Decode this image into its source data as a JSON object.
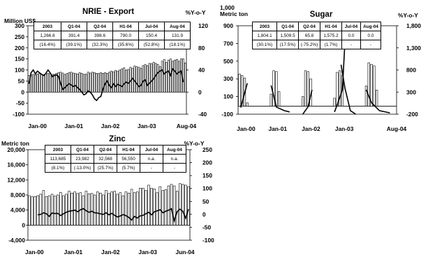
{
  "chart_data": [
    {
      "type": "bar",
      "title": "NRIE - Export",
      "ylabel": "Million US$",
      "y2label": "%Y-o-Y",
      "ylim": [
        -100,
        300
      ],
      "y2lim": [
        -40,
        120
      ],
      "yticks": [
        "300",
        "250",
        "200",
        "150",
        "100",
        "50",
        "0",
        "-50",
        "-100"
      ],
      "y2ticks": [
        "120",
        "80",
        "40",
        "0",
        "-40"
      ],
      "xticks": [
        "Jan-00",
        "Jan-01",
        "Jan-02",
        "Jan-03",
        "Aug-04"
      ],
      "table": {
        "headers": [
          "2003",
          "Q1-04",
          "Q2-04",
          "H1-04",
          "Jul-04",
          "Aug-04"
        ],
        "values": [
          "1,266.6",
          "391.4",
          "398.6",
          "790.0",
          "150.4",
          "131.9"
        ],
        "growth": [
          "(16.4%)",
          "(39.1%)",
          "(32.3%)",
          "(35.6%)",
          "(52.8%)",
          "(18.1%)"
        ]
      },
      "series": [
        {
          "name": "Value",
          "type": "bar",
          "values": [
            75,
            78,
            80,
            78,
            82,
            84,
            80,
            78,
            82,
            85,
            83,
            80,
            80,
            85,
            88,
            90,
            86,
            80,
            84,
            88,
            90,
            86,
            84,
            82,
            88,
            85,
            80,
            82,
            90,
            86,
            90,
            88,
            85,
            84,
            88,
            85,
            88,
            85,
            90,
            95,
            92,
            98,
            95,
            100,
            105,
            110,
            100,
            102,
            112,
            108,
            118,
            115,
            112,
            108,
            120,
            125,
            120,
            130,
            128,
            135,
            130,
            125,
            115,
            140,
            148,
            135,
            145,
            150,
            140,
            145,
            148,
            140,
            150,
            150,
            132
          ]
        },
        {
          "name": "%Y-o-Y",
          "type": "line",
          "values": [
            15,
            35,
            40,
            33,
            38,
            35,
            32,
            30,
            34,
            40,
            35,
            28,
            30,
            31,
            28,
            15,
            5,
            8,
            12,
            15,
            13,
            10,
            12,
            8,
            5,
            0,
            -5,
            -3,
            2,
            0,
            -5,
            -12,
            -15,
            -10,
            -8,
            5,
            15,
            20,
            12,
            8,
            15,
            10,
            14,
            12,
            10,
            15,
            18,
            16,
            20,
            25,
            20,
            15,
            10,
            12,
            20,
            22,
            12,
            16,
            20,
            24,
            30,
            35,
            38,
            40,
            33,
            36,
            38,
            30,
            42,
            38,
            33,
            36,
            38,
            18
          ]
        }
      ]
    },
    {
      "type": "bar",
      "title": "Sugar",
      "ylabel": "1,000 Metric ton",
      "y2label": "%Y-o-Y",
      "ylim": [
        -100,
        1000
      ],
      "y2lim": [
        -200,
        1800
      ],
      "yticks": [
        "900",
        "700",
        "500",
        "300",
        "100",
        "-100"
      ],
      "y2ticks": [
        "1,800",
        "1,300",
        "800",
        "300",
        "-200"
      ],
      "xticks": [
        "Jan-00",
        "Jan-01",
        "Jan-02",
        "Jan-03",
        "Aug-04"
      ],
      "table": {
        "headers": [
          "2003",
          "Q1-04",
          "Q2-04",
          "H1-04",
          "Jul-04",
          "Aug-04"
        ],
        "values": [
          "1,804.1",
          "1,509.5",
          "65.8",
          "1,575.2",
          "0.0",
          "0.0"
        ],
        "growth": [
          "(30.1%)",
          "(17.5%)",
          "(-75.2%)",
          "(1.7%)",
          "-",
          "-"
        ]
      },
      "series": [
        {
          "name": "Volume",
          "type": "bar",
          "values": [
            400,
            380,
            350,
            40,
            0,
            0,
            0,
            0,
            0,
            0,
            0,
            0,
            150,
            440,
            430,
            180,
            0,
            0,
            0,
            0,
            0,
            0,
            0,
            0,
            120,
            440,
            430,
            340,
            0,
            0,
            0,
            0,
            0,
            0,
            0,
            0,
            100,
            420,
            440,
            380,
            0,
            0,
            0,
            0,
            0,
            0,
            0,
            0,
            250,
            540,
            520,
            500,
            200,
            0,
            0,
            0,
            0,
            0,
            0,
            0
          ]
        },
        {
          "name": "%Y-o-Y",
          "type": "line",
          "values": [
            null,
            null,
            null,
            null,
            null,
            null,
            null,
            null,
            null,
            null,
            null,
            null,
            null,
            null,
            null,
            null,
            null,
            null,
            null,
            null,
            null,
            null,
            null,
            null,
            null,
            null,
            null,
            null,
            null,
            null,
            null,
            null,
            null,
            null,
            null,
            null,
            null,
            null,
            null,
            null,
            null,
            null,
            null,
            null,
            null,
            null,
            null,
            null,
            null,
            null,
            null,
            null,
            null,
            null,
            null,
            null,
            null,
            null,
            null,
            null
          ],
          "segments": [
            [
              [
                0.5,
                -50
              ],
              [
                3,
                500
              ]
            ],
            [
              [
                12,
                450
              ],
              [
                14,
                -40
              ],
              [
                17,
                -120
              ],
              [
                19,
                -150
              ]
            ],
            [
              [
                24,
                -200
              ],
              [
                26,
                -30
              ],
              [
                27.5,
                350
              ]
            ],
            [
              [
                36,
                -150
              ],
              [
                37,
                10
              ],
              [
                39,
                350
              ],
              [
                40,
                1480
              ]
            ],
            [
              [
                38.5,
                920
              ],
              [
                40,
                380
              ],
              [
                42,
                -120
              ],
              [
                44,
                -200
              ]
            ],
            [
              [
                48,
                350
              ],
              [
                50,
                60
              ],
              [
                53,
                -120
              ],
              [
                57,
                -170
              ]
            ]
          ]
        }
      ]
    },
    {
      "type": "bar",
      "title": "Zinc",
      "ylabel": "Metric ton",
      "y2label": "%Y-o-Y",
      "ylim": [
        -4000,
        20000
      ],
      "y2lim": [
        -100,
        250
      ],
      "yticks": [
        "20,000",
        "16,000",
        "12,000",
        "8,000",
        "4,000",
        "0",
        "-4,000"
      ],
      "y2ticks": [
        "250",
        "200",
        "150",
        "100",
        "50",
        "0",
        "-50",
        "-100"
      ],
      "xticks": [
        "Jan-00",
        "Jan-01",
        "Jan-02",
        "Jan-03",
        "Jun-04"
      ],
      "table": {
        "headers": [
          "2003",
          "Q1-04",
          "Q2-04",
          "H1-04",
          "Jul-04",
          "Aug-04"
        ],
        "values": [
          "113,685",
          "23,982",
          "32,568",
          "56,550",
          "n.a.",
          "n.a."
        ],
        "growth": [
          "(8.1%)",
          "(-13.0%)",
          "(25.7%)",
          "(5.7%)",
          "-",
          "-"
        ]
      },
      "series": [
        {
          "name": "Volume",
          "type": "bar",
          "values": [
            7800,
            7500,
            7600,
            7800,
            8200,
            9200,
            7600,
            7800,
            8200,
            7700,
            8000,
            8700,
            7800,
            8200,
            9000,
            8500,
            8800,
            8400,
            8600,
            7800,
            9000,
            8300,
            8400,
            8000,
            8800,
            8500,
            8000,
            9200,
            8400,
            8800,
            9000,
            8200,
            8600,
            7800,
            8800,
            8500,
            9500,
            8600,
            8800,
            9800,
            9800,
            9200,
            10600,
            9800,
            9600,
            8600,
            10200,
            9200,
            9400,
            10400,
            10800,
            10400,
            9000,
            11000,
            10800,
            10600,
            10200
          ]
        },
        {
          "name": "%Y-o-Y",
          "type": "line",
          "values": [
            null,
            null,
            null,
            -2,
            0,
            6,
            2,
            -8,
            5,
            3,
            4,
            -5,
            2,
            8,
            12,
            14,
            16,
            10,
            18,
            22,
            14,
            8,
            12,
            6,
            5,
            2,
            0,
            6,
            -2,
            4,
            -4,
            -10,
            -6,
            -1,
            -5,
            -12,
            -22,
            -8,
            -14,
            -6,
            -4,
            2,
            8,
            -2,
            10,
            14,
            18,
            6,
            12,
            16,
            22,
            -25,
            10,
            20,
            12,
            -15,
            20
          ]
        }
      ]
    }
  ]
}
